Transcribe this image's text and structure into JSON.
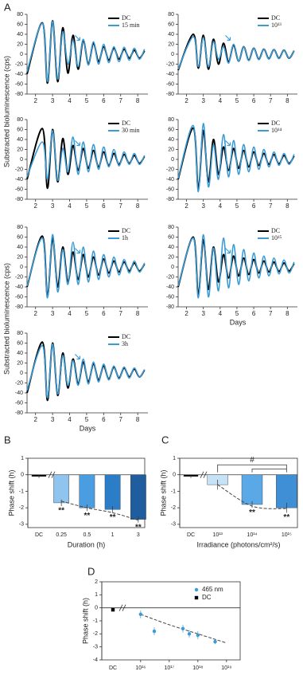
{
  "figure": {
    "panel_labels": [
      "A",
      "B",
      "C",
      "D"
    ],
    "y_label": "Substracted bioluminescence (cps)"
  },
  "chart_data": [
    {
      "type": "line",
      "x": [
        1.5,
        2.4,
        2.7,
        3.0,
        3.3,
        3.6,
        3.9,
        4.2,
        4.5,
        4.8,
        5.1,
        5.4,
        5.7,
        6.0,
        6.3,
        6.6,
        6.9,
        7.2,
        7.5,
        7.8,
        8.1,
        8.4
      ],
      "xlim": [
        1.5,
        8.6
      ],
      "xticks": [
        2,
        3,
        4,
        5,
        6,
        7,
        8
      ],
      "ylim": [
        -80,
        80
      ],
      "yticks": [
        -80,
        -60,
        -40,
        -20,
        0,
        20,
        40,
        60,
        80
      ],
      "series": [
        {
          "name": "DC",
          "color": "#000000",
          "values": [
            -40,
            63,
            -58,
            67,
            -55,
            53,
            -38,
            38,
            -30,
            28,
            -20,
            22,
            -15,
            15,
            -12,
            12,
            -10,
            10,
            -8,
            8,
            -8,
            7
          ]
        },
        {
          "name": "15 min",
          "color": "#3a9bd5",
          "values": [
            -35,
            62,
            -55,
            66,
            -50,
            45,
            -20,
            28,
            -25,
            30,
            -22,
            25,
            -20,
            20,
            -17,
            15,
            -15,
            14,
            -12,
            12,
            -10,
            10
          ]
        }
      ]
    },
    {
      "type": "line",
      "x": [
        1.5,
        2.4,
        2.7,
        3.0,
        3.3,
        3.6,
        3.9,
        4.2,
        4.5,
        4.8,
        5.1,
        5.4,
        5.7,
        6.0,
        6.3,
        6.6,
        6.9,
        7.2,
        7.5,
        7.8,
        8.1,
        8.4
      ],
      "xlim": [
        1.5,
        8.6
      ],
      "xticks": [
        2,
        3,
        4,
        5,
        6,
        7,
        8
      ],
      "ylim": [
        -80,
        80
      ],
      "yticks": [
        -80,
        -60,
        -40,
        -20,
        0,
        20,
        40,
        60,
        80
      ],
      "series": [
        {
          "name": "DC",
          "color": "#000000",
          "values": [
            -40,
            62,
            -58,
            60,
            -45,
            42,
            -30,
            28,
            -22,
            22,
            -18,
            18,
            -15,
            15,
            -12,
            12,
            -10,
            10,
            -8,
            8,
            -8,
            6
          ]
        },
        {
          "name": "30 min",
          "color": "#3a9bd5",
          "values": [
            -35,
            35,
            -40,
            58,
            -42,
            22,
            -25,
            45,
            -30,
            35,
            -25,
            30,
            -20,
            25,
            -15,
            20,
            -13,
            15,
            -10,
            12,
            -10,
            8
          ]
        }
      ]
    },
    {
      "type": "line",
      "x": [
        1.5,
        2.4,
        2.7,
        3.0,
        3.3,
        3.6,
        3.9,
        4.2,
        4.5,
        4.8,
        5.1,
        5.4,
        5.7,
        6.0,
        6.3,
        6.6,
        6.9,
        7.2,
        7.5,
        7.8,
        8.1,
        8.4
      ],
      "xlim": [
        1.5,
        8.6
      ],
      "xticks": [
        2,
        3,
        4,
        5,
        6,
        7,
        8
      ],
      "ylim": [
        -80,
        80
      ],
      "yticks": [
        -80,
        -60,
        -40,
        -20,
        0,
        20,
        40,
        60,
        80
      ],
      "series": [
        {
          "name": "DC",
          "color": "#000000",
          "values": [
            -40,
            62,
            -58,
            58,
            -40,
            40,
            -30,
            30,
            -25,
            25,
            -20,
            20,
            -16,
            16,
            -12,
            12,
            -10,
            10,
            -8,
            8,
            -8,
            6
          ]
        },
        {
          "name": "1h",
          "color": "#3a9bd5",
          "values": [
            -38,
            58,
            -62,
            65,
            -50,
            35,
            -35,
            50,
            -35,
            40,
            -30,
            32,
            -25,
            25,
            -20,
            20,
            -16,
            15,
            -12,
            12,
            -10,
            8
          ]
        }
      ]
    },
    {
      "type": "line",
      "x": [
        1.5,
        2.4,
        2.7,
        3.0,
        3.3,
        3.6,
        3.9,
        4.2,
        4.5,
        4.8,
        5.1,
        5.4,
        5.7,
        6.0,
        6.3,
        6.6,
        6.9,
        7.2,
        7.5,
        7.8,
        8.1,
        8.4
      ],
      "xlim": [
        1.5,
        8.6
      ],
      "xticks": [
        2,
        3,
        4,
        5,
        6,
        7,
        8
      ],
      "ylim": [
        -80,
        80
      ],
      "yticks": [
        -80,
        -60,
        -40,
        -20,
        0,
        20,
        40,
        60,
        80
      ],
      "x_label": "Days",
      "series": [
        {
          "name": "DC",
          "color": "#000000",
          "values": [
            -40,
            62,
            -55,
            60,
            -45,
            40,
            -30,
            28,
            -22,
            22,
            -18,
            18,
            -14,
            14,
            -12,
            12,
            -10,
            10,
            -8,
            8,
            -8,
            6
          ]
        },
        {
          "name": "3h",
          "color": "#3a9bd5",
          "values": [
            -35,
            55,
            -50,
            58,
            -42,
            35,
            -25,
            25,
            -25,
            28,
            -22,
            22,
            -18,
            18,
            -14,
            14,
            -12,
            12,
            -10,
            10,
            -8,
            7
          ]
        }
      ]
    },
    {
      "type": "line",
      "x": [
        1.5,
        2.4,
        2.7,
        3.0,
        3.3,
        3.6,
        3.9,
        4.2,
        4.5,
        4.8,
        5.1,
        5.4,
        5.7,
        6.0,
        6.3,
        6.6,
        6.9,
        7.2,
        7.5,
        7.8,
        8.1,
        8.4
      ],
      "xlim": [
        1.5,
        8.6
      ],
      "xticks": [
        2,
        3,
        4,
        5,
        6,
        7,
        8
      ],
      "ylim": [
        -80,
        80
      ],
      "yticks": [
        -80,
        -60,
        -40,
        -20,
        0,
        20,
        40,
        60,
        80
      ],
      "series": [
        {
          "name": "DC",
          "color": "#000000",
          "values": [
            -32,
            40,
            -28,
            38,
            -30,
            30,
            -20,
            22,
            -15,
            18,
            -14,
            15,
            -12,
            12,
            -10,
            10,
            -9,
            9,
            -8,
            8,
            -8,
            7
          ]
        },
        {
          "name": "10¹³",
          "color": "#3a9bd5",
          "values": [
            -30,
            35,
            -25,
            33,
            -25,
            25,
            -10,
            15,
            -18,
            20,
            -14,
            15,
            -13,
            12,
            -11,
            10,
            -10,
            9,
            -9,
            8,
            -8,
            7
          ]
        }
      ]
    },
    {
      "type": "line",
      "x": [
        1.5,
        2.4,
        2.7,
        3.0,
        3.3,
        3.6,
        3.9,
        4.2,
        4.5,
        4.8,
        5.1,
        5.4,
        5.7,
        6.0,
        6.3,
        6.6,
        6.9,
        7.2,
        7.5,
        7.8,
        8.1,
        8.4
      ],
      "xlim": [
        1.5,
        8.6
      ],
      "xticks": [
        2,
        3,
        4,
        5,
        6,
        7,
        8
      ],
      "ylim": [
        -80,
        80
      ],
      "yticks": [
        -80,
        -60,
        -40,
        -20,
        0,
        20,
        40,
        60,
        80
      ],
      "series": [
        {
          "name": "DC",
          "color": "#000000",
          "values": [
            -40,
            63,
            -58,
            58,
            -45,
            40,
            -30,
            25,
            -22,
            22,
            -18,
            18,
            -15,
            15,
            -12,
            12,
            -10,
            10,
            -9,
            8,
            -8,
            7
          ]
        },
        {
          "name": "10¹⁴",
          "color": "#3a9bd5",
          "values": [
            -38,
            68,
            -65,
            72,
            -55,
            30,
            -40,
            50,
            -35,
            38,
            -30,
            30,
            -25,
            25,
            -20,
            20,
            -15,
            15,
            -12,
            12,
            -10,
            10
          ]
        }
      ]
    },
    {
      "type": "line",
      "x": [
        1.5,
        2.4,
        2.7,
        3.0,
        3.3,
        3.6,
        3.9,
        4.2,
        4.5,
        4.8,
        5.1,
        5.4,
        5.7,
        6.0,
        6.3,
        6.6,
        6.9,
        7.2,
        7.5,
        7.8,
        8.1,
        8.4
      ],
      "xlim": [
        1.5,
        8.6
      ],
      "xticks": [
        2,
        3,
        4,
        5,
        6,
        7,
        8
      ],
      "ylim": [
        -80,
        80
      ],
      "yticks": [
        -80,
        -60,
        -40,
        -20,
        0,
        20,
        40,
        60,
        80
      ],
      "x_label": "Days",
      "series": [
        {
          "name": "DC",
          "color": "#000000",
          "values": [
            -40,
            60,
            -55,
            55,
            -45,
            40,
            -30,
            25,
            -22,
            22,
            -18,
            18,
            -15,
            15,
            -12,
            12,
            -10,
            10,
            -9,
            8,
            -8,
            7
          ]
        },
        {
          "name": "10¹⁵",
          "color": "#3a9bd5",
          "values": [
            -38,
            58,
            -62,
            65,
            -60,
            38,
            -48,
            58,
            -42,
            45,
            -35,
            35,
            -28,
            28,
            -22,
            22,
            -18,
            18,
            -14,
            14,
            -12,
            10
          ]
        }
      ]
    },
    {
      "type": "bar",
      "y_label": "Phase shift (h)",
      "x_label": "Duration (h)",
      "categories": [
        "DC",
        "0.25",
        "0.5",
        "1",
        "3"
      ],
      "values": [
        -0.1,
        -1.7,
        -2.0,
        -2.1,
        -2.7
      ],
      "errors": [
        0.1,
        0.2,
        0.2,
        0.2,
        0.2
      ],
      "colors": [
        "#000000",
        "#8fc4ef",
        "#4a9de0",
        "#2b7dc7",
        "#1f5d9e"
      ],
      "significance": [
        null,
        "**",
        "**",
        "**",
        "**"
      ],
      "fit": [
        null,
        -1.6,
        -2.0,
        -2.3,
        -2.75
      ],
      "ylim": [
        -3.2,
        1
      ],
      "yticks": [
        -3,
        -2,
        -1,
        0,
        1
      ]
    },
    {
      "type": "bar",
      "y_label": "Phase shift (h)",
      "x_label": "Irradiance (photons/cm²/s)",
      "categories": [
        "DC",
        "10¹³",
        "10¹⁴",
        "10¹⁵"
      ],
      "values": [
        -0.1,
        -0.6,
        -1.8,
        -2.0
      ],
      "errors": [
        0.1,
        0.3,
        0.2,
        0.3
      ],
      "colors": [
        "#000000",
        "#c6e2f7",
        "#5aa8e6",
        "#3e8fd6"
      ],
      "significance": [
        null,
        null,
        "**",
        "**"
      ],
      "bracket_label": "#",
      "fit": [
        null,
        -0.6,
        -1.9,
        -2.05
      ],
      "ylim": [
        -3.2,
        1
      ],
      "yticks": [
        -3,
        -2,
        -1,
        0,
        1
      ]
    },
    {
      "type": "scatter",
      "y_label": "Phase shift (h)",
      "log_x": true,
      "dc_label": "DC",
      "xlim": [
        3000000000000000.0,
        3e+19
      ],
      "xticks": [
        {
          "value": 1e+16,
          "label": "10¹⁶"
        },
        {
          "value": 1e+17,
          "label": "10¹⁷"
        },
        {
          "value": 1e+18,
          "label": "10¹⁸"
        },
        {
          "value": 1e+19,
          "label": "10¹⁹"
        }
      ],
      "ylim": [
        -4,
        2
      ],
      "yticks": [
        -4,
        -3,
        -2,
        -1,
        0,
        1,
        2
      ],
      "series": [
        {
          "name": "465 nm",
          "color": "#3a9bd5",
          "x": [
            1e+16,
            3e+16,
            3e+17,
            5e+17,
            1e+18,
            4e+18
          ],
          "values": [
            -0.5,
            -1.8,
            -1.6,
            -2.0,
            -2.1,
            -2.6
          ],
          "errors": [
            0.3,
            0.3,
            0.3,
            0.3,
            0.3,
            0.2
          ]
        },
        {
          "name": "DC",
          "color": "#000000",
          "values": [
            -0.15
          ],
          "errors": [
            0.1
          ]
        }
      ],
      "fit": {
        "x": [
          1e+16,
          1e+17,
          1e+18,
          1e+19
        ],
        "values": [
          -0.5,
          -1.3,
          -2.0,
          -2.7
        ]
      }
    }
  ]
}
